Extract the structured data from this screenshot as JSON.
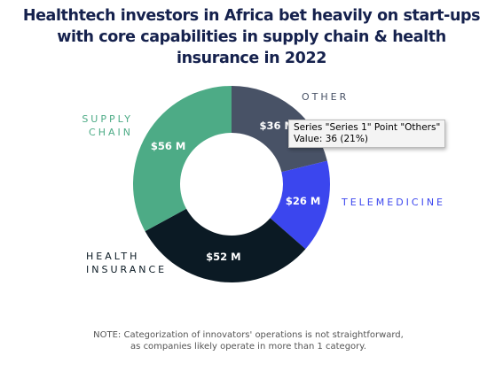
{
  "chart_data": {
    "type": "donut",
    "title": "Healthtech investors in Africa bet heavily on start-ups with core capabilities in supply chain &  health insurance in 2022",
    "categories": [
      "OTHER",
      "TELEMEDICINE",
      "HEALTH INSURANCE",
      "SUPPLY CHAIN"
    ],
    "values": [
      36,
      26,
      52,
      56
    ],
    "value_labels": [
      "$36 M",
      "$26 M",
      "$52 M",
      "$56 M"
    ],
    "colors": [
      "#485266",
      "#3b46ee",
      "#0b1a24",
      "#4dab86"
    ],
    "note": [
      "NOTE: Categorization of innovators' operations is not straightforward,",
      "as companies likely operate in more than 1 category."
    ]
  },
  "tooltip": {
    "lines": [
      "Series \"Series 1\" Point \"Others\"",
      "Value: 36 (21%)"
    ]
  }
}
